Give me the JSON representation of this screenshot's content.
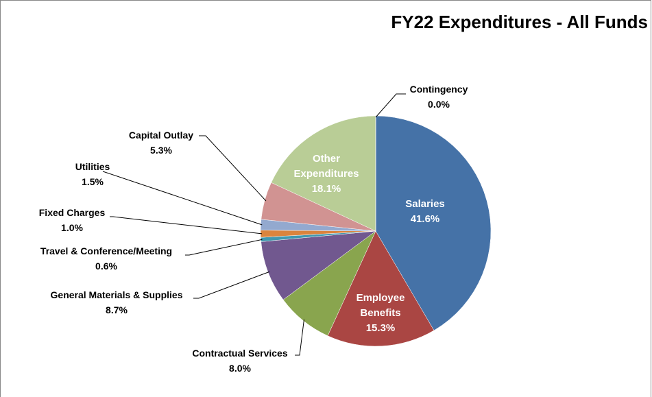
{
  "chart_data": {
    "type": "pie",
    "title": "FY22 Expenditures - All Funds",
    "categories": [
      "Salaries",
      "Employee Benefits",
      "Contractual Services",
      "General Materials & Supplies",
      "Travel & Conference/Meeting",
      "Fixed Charges",
      "Utilities",
      "Capital Outlay",
      "Other Expenditures",
      "Contingency"
    ],
    "values": [
      41.6,
      15.3,
      8.0,
      8.7,
      0.6,
      1.0,
      1.5,
      5.3,
      18.1,
      0.0
    ],
    "value_labels": [
      "41.6%",
      "15.3%",
      "8.0%",
      "8.7%",
      "0.6%",
      "1.0%",
      "1.5%",
      "5.3%",
      "18.1%",
      "0.0%"
    ],
    "colors": [
      "#4572a7",
      "#aa4643",
      "#89a54e",
      "#71588f",
      "#4198af",
      "#db843d",
      "#93a9cf",
      "#d19392",
      "#b9cd96",
      "#a99bbd"
    ]
  }
}
